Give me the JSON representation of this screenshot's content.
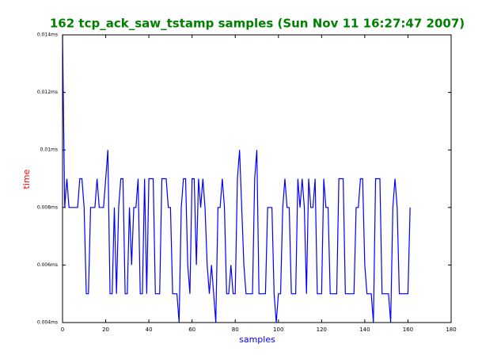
{
  "chart_data": {
    "type": "line",
    "title": "162 tcp_ack_saw_tstamp samples (Sun Nov 11 16:27:47 2007)",
    "xlabel": "samples",
    "ylabel": "time",
    "color": "#0000ff",
    "x": [
      0,
      1,
      2,
      3,
      4,
      5,
      6,
      7,
      8,
      9,
      10,
      11,
      12,
      13,
      14,
      15,
      16,
      17,
      18,
      19,
      20,
      21,
      22,
      23,
      24,
      25,
      26,
      27,
      28,
      29,
      30,
      31,
      32,
      33,
      34,
      35,
      36,
      37,
      38,
      39,
      40,
      41,
      42,
      43,
      44,
      45,
      46,
      47,
      48,
      49,
      50,
      51,
      52,
      53,
      54,
      55,
      56,
      57,
      58,
      59,
      60,
      61,
      62,
      63,
      64,
      65,
      66,
      67,
      68,
      69,
      70,
      71,
      72,
      73,
      74,
      75,
      76,
      77,
      78,
      79,
      80,
      81,
      82,
      83,
      84,
      85,
      86,
      87,
      88,
      89,
      90,
      91,
      92,
      93,
      94,
      95,
      96,
      97,
      98,
      99,
      100,
      101,
      102,
      103,
      104,
      105,
      106,
      107,
      108,
      109,
      110,
      111,
      112,
      113,
      114,
      115,
      116,
      117,
      118,
      119,
      120,
      121,
      122,
      123,
      124,
      125,
      126,
      127,
      128,
      129,
      130,
      131,
      132,
      133,
      134,
      135,
      136,
      137,
      138,
      139,
      140,
      141,
      142,
      143,
      144,
      145,
      146,
      147,
      148,
      149,
      150,
      151,
      152,
      153,
      154,
      155,
      156,
      157,
      158,
      159,
      160,
      161
    ],
    "values": [
      0.014,
      0.008,
      0.009,
      0.008,
      0.008,
      0.008,
      0.008,
      0.008,
      0.009,
      0.009,
      0.008,
      0.005,
      0.005,
      0.008,
      0.008,
      0.008,
      0.009,
      0.008,
      0.008,
      0.008,
      0.009,
      0.01,
      0.005,
      0.005,
      0.008,
      0.005,
      0.008,
      0.009,
      0.009,
      0.005,
      0.005,
      0.008,
      0.006,
      0.008,
      0.008,
      0.009,
      0.005,
      0.005,
      0.009,
      0.005,
      0.009,
      0.009,
      0.009,
      0.005,
      0.005,
      0.005,
      0.009,
      0.009,
      0.009,
      0.008,
      0.008,
      0.005,
      0.005,
      0.005,
      0.004,
      0.008,
      0.009,
      0.009,
      0.006,
      0.005,
      0.009,
      0.009,
      0.006,
      0.009,
      0.008,
      0.009,
      0.008,
      0.006,
      0.005,
      0.006,
      0.005,
      0.004,
      0.008,
      0.008,
      0.009,
      0.008,
      0.005,
      0.005,
      0.006,
      0.005,
      0.005,
      0.009,
      0.01,
      0.008,
      0.006,
      0.005,
      0.005,
      0.005,
      0.005,
      0.009,
      0.01,
      0.005,
      0.005,
      0.005,
      0.005,
      0.008,
      0.008,
      0.008,
      0.005,
      0.004,
      0.005,
      0.005,
      0.008,
      0.009,
      0.008,
      0.008,
      0.005,
      0.005,
      0.005,
      0.009,
      0.008,
      0.009,
      0.008,
      0.005,
      0.009,
      0.008,
      0.008,
      0.009,
      0.005,
      0.005,
      0.005,
      0.009,
      0.008,
      0.008,
      0.005,
      0.005,
      0.005,
      0.005,
      0.009,
      0.009,
      0.009,
      0.005,
      0.005,
      0.005,
      0.005,
      0.005,
      0.008,
      0.008,
      0.009,
      0.009,
      0.006,
      0.005,
      0.005,
      0.005,
      0.004,
      0.009,
      0.009,
      0.009,
      0.005,
      0.005,
      0.005,
      0.005,
      0.004,
      0.008,
      0.009,
      0.008,
      0.005,
      0.005,
      0.005,
      0.005,
      0.005,
      0.008
    ],
    "xlim": [
      0,
      180
    ],
    "xticks": [
      0,
      20,
      40,
      60,
      80,
      100,
      120,
      140,
      160,
      180
    ],
    "ylim": [
      0.004,
      0.014
    ],
    "yticks": [
      {
        "value": 0.004,
        "label": "0.004ms"
      },
      {
        "value": 0.006,
        "label": "0.006ms"
      },
      {
        "value": 0.008,
        "label": "0.008ms"
      },
      {
        "value": 0.01,
        "label": "0.01ms"
      },
      {
        "value": 0.012,
        "label": "0.012ms"
      },
      {
        "value": 0.014,
        "label": "0.014ms"
      }
    ]
  }
}
